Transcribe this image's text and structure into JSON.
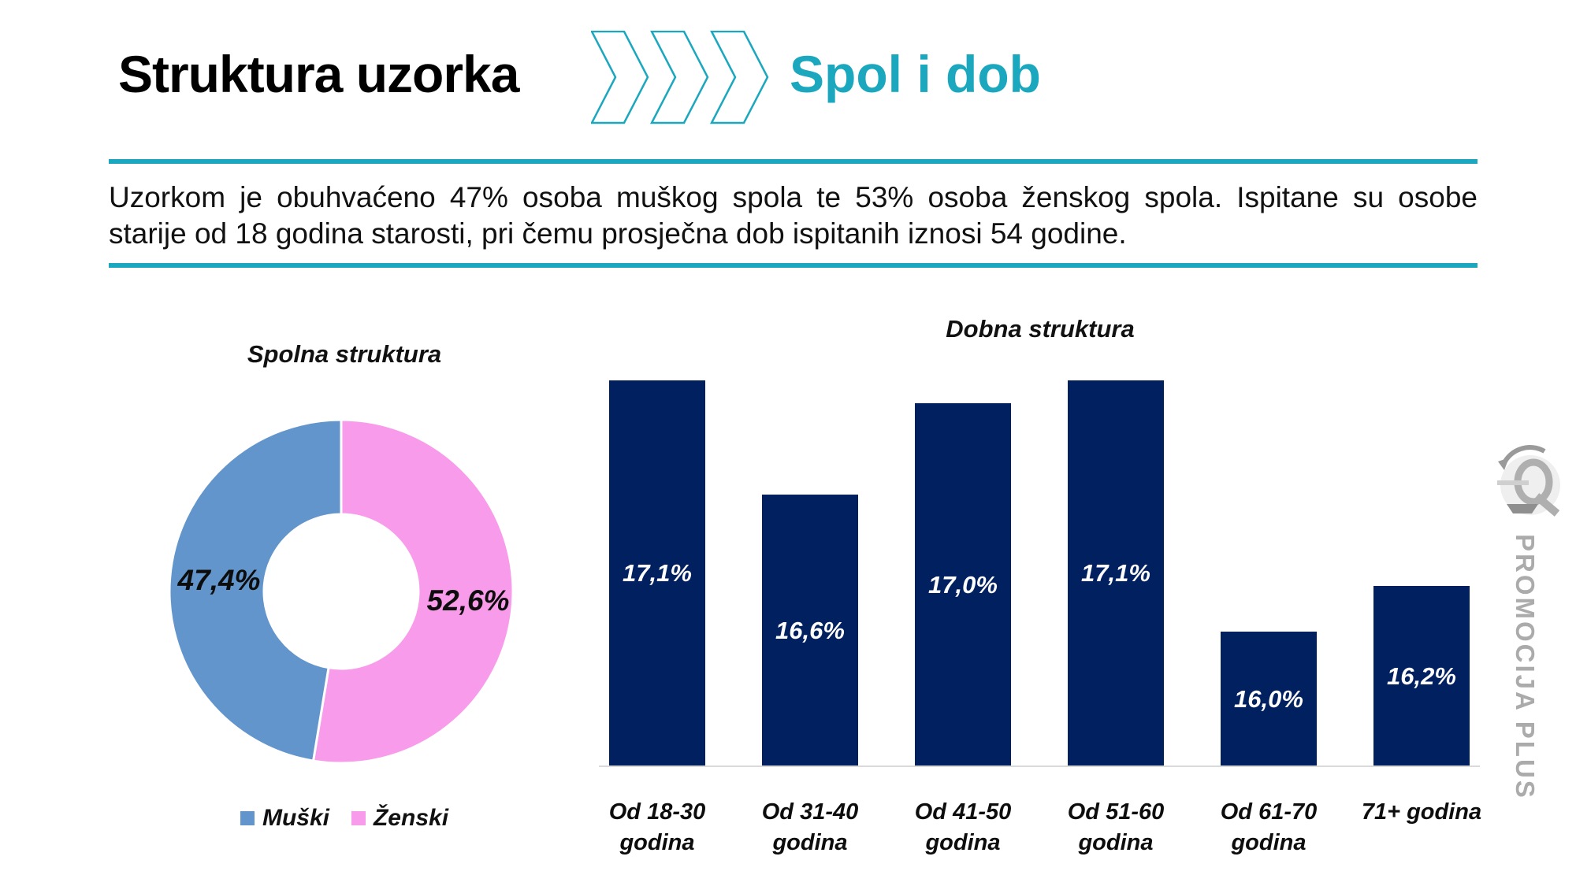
{
  "slide": {
    "title": "Struktura uzorka",
    "subtitle": "Spol i dob",
    "intro_line1": "Uzorkom je obuhvaćeno 47% osoba muškog spola te 53% osoba ženskog spola. Ispitane su osobe",
    "intro_line2": "starije od 18 godina starosti, pri čemu prosječna dob ispitanih iznosi 54 godine."
  },
  "colors": {
    "accent_teal": "#1BA7BE",
    "bar_navy": "#002060",
    "male_blue": "#6295CB",
    "female_pink": "#F89BEA",
    "axis_gray": "#D9D9D9",
    "watermark_gray": "#ABABAB"
  },
  "chart_data": [
    {
      "type": "pie",
      "title": "Spolna struktura",
      "labels": [
        "Muški",
        "Ženski"
      ],
      "values": [
        47.4,
        52.6
      ],
      "value_labels": [
        "47,4%",
        "52,6%"
      ],
      "colors": [
        "#6295CB",
        "#F89BEA"
      ],
      "donut": true,
      "start_angle_deg": 0,
      "legend_position": "bottom"
    },
    {
      "type": "bar",
      "title": "Dobna struktura",
      "categories": [
        "Od 18-30 godina",
        "Od 31-40 godina",
        "Od 41-50 godina",
        "Od 51-60 godina",
        "Od 61-70 godina",
        "71+ godina"
      ],
      "values": [
        17.1,
        16.6,
        17.0,
        17.1,
        16.0,
        16.2
      ],
      "value_labels": [
        "17,1%",
        "16,6%",
        "17,0%",
        "17,1%",
        "16,0%",
        "16,2%"
      ],
      "bar_color": "#002060",
      "ylim": [
        15.41,
        17.45
      ],
      "grid": false,
      "legend": false,
      "value_label_position": "center-inside"
    }
  ],
  "watermark": {
    "text": "PROMOCIJA PLUS",
    "logo": "promocija-plus-logo"
  }
}
